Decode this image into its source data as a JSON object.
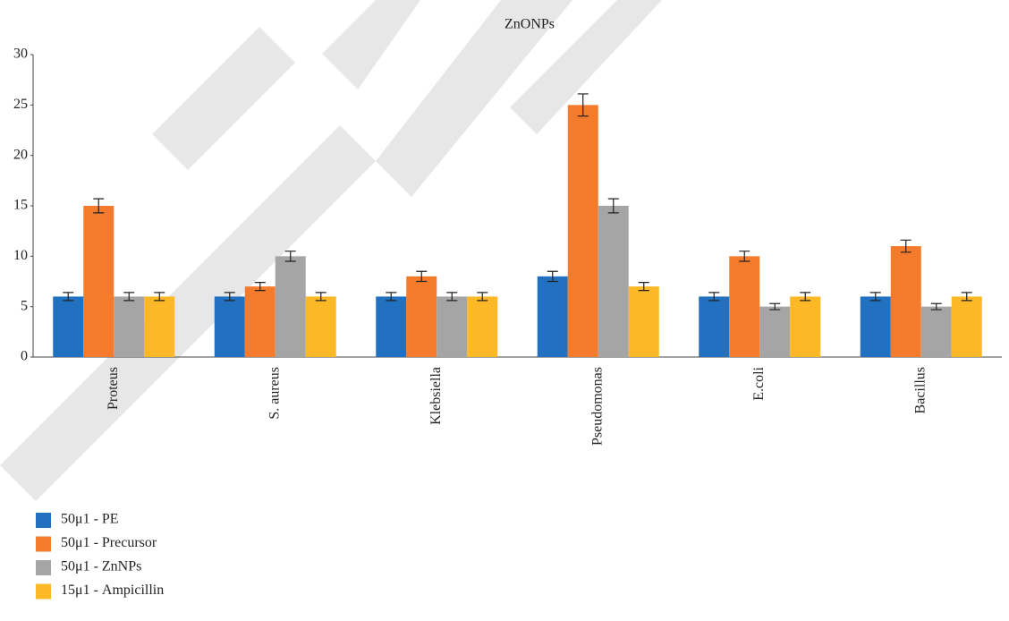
{
  "chart_data": {
    "type": "bar",
    "title": "ZnONPs",
    "categories": [
      "Proteus",
      "S. aureus",
      "Klebsiella",
      "Pseudomonas",
      "E.coli",
      "Bacillus"
    ],
    "series": [
      {
        "name": "50μ1 - PE",
        "color": "#2270c0",
        "values": [
          6,
          6,
          6,
          8,
          6,
          6
        ],
        "errors": [
          0.4,
          0.4,
          0.4,
          0.5,
          0.4,
          0.4
        ]
      },
      {
        "name": "50μ1 - Precursor",
        "color": "#f47b2c",
        "values": [
          15,
          7,
          8,
          25,
          10,
          11
        ],
        "errors": [
          0.7,
          0.4,
          0.5,
          1.1,
          0.5,
          0.6
        ]
      },
      {
        "name": "50μ1 - ZnNPs",
        "color": "#a5a5a5",
        "values": [
          6,
          10,
          6,
          15,
          5,
          5
        ],
        "errors": [
          0.4,
          0.5,
          0.4,
          0.7,
          0.3,
          0.3
        ]
      },
      {
        "name": "15μ1 - Ampicillin",
        "color": "#fdb827",
        "values": [
          6,
          6,
          6,
          7,
          6,
          6
        ],
        "errors": [
          0.4,
          0.4,
          0.4,
          0.4,
          0.4,
          0.4
        ]
      }
    ],
    "ylim": [
      0,
      30
    ],
    "yticks": [
      0,
      5,
      10,
      15,
      20,
      25,
      30
    ]
  }
}
